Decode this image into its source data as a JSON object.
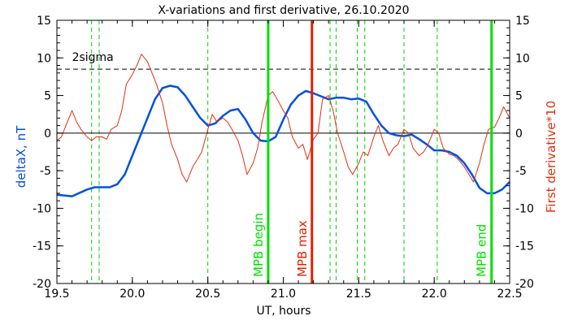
{
  "chart_data": {
    "type": "line",
    "title": "X-variations and first derivative, 26.10.2020",
    "xlabel": "UT, hours",
    "ylabel_left": "deltaX, nT",
    "ylabel_right": "First derivative*10",
    "xlim": [
      19.5,
      22.5
    ],
    "ylim": [
      -20,
      15
    ],
    "xticks": [
      "19.5",
      "20.0",
      "20.5",
      "21.0",
      "21.5",
      "22.0",
      "22.5"
    ],
    "yticks": [
      "-20",
      "-15",
      "-10",
      "-5",
      "0",
      "5",
      "10",
      "15"
    ],
    "sigma_label": "2sigma",
    "sigma_level": 8.5,
    "zero_level": 0,
    "series": [
      {
        "name": "deltaX, nT",
        "color": "#0050e0",
        "x": [
          19.5,
          19.6,
          19.7,
          19.75,
          19.85,
          19.9,
          19.95,
          20.0,
          20.05,
          20.1,
          20.15,
          20.2,
          20.25,
          20.3,
          20.35,
          20.4,
          20.45,
          20.5,
          20.55,
          20.6,
          20.65,
          20.7,
          20.75,
          20.8,
          20.85,
          20.9,
          20.95,
          21.0,
          21.05,
          21.1,
          21.15,
          21.2,
          21.25,
          21.3,
          21.35,
          21.4,
          21.45,
          21.5,
          21.55,
          21.6,
          21.65,
          21.7,
          21.75,
          21.8,
          21.85,
          21.9,
          21.95,
          22.0,
          22.05,
          22.1,
          22.15,
          22.2,
          22.25,
          22.3,
          22.35,
          22.4,
          22.45,
          22.5
        ],
        "values": [
          -8.2,
          -8.4,
          -7.5,
          -7.2,
          -7.2,
          -6.8,
          -5.5,
          -3.0,
          -0.5,
          2.0,
          4.5,
          6.0,
          6.3,
          6.1,
          5.0,
          3.5,
          2.0,
          1.0,
          1.3,
          2.3,
          3.0,
          3.2,
          1.8,
          0.0,
          -1.0,
          -1.1,
          -0.5,
          1.8,
          3.8,
          5.0,
          5.6,
          5.3,
          4.9,
          4.5,
          4.7,
          4.7,
          4.5,
          4.6,
          4.2,
          2.5,
          1.0,
          0.0,
          -0.3,
          -0.4,
          -0.2,
          -0.8,
          -1.5,
          -2.3,
          -2.3,
          -2.5,
          -3.0,
          -4.0,
          -5.5,
          -7.3,
          -8.0,
          -8.0,
          -7.5,
          -6.5
        ]
      },
      {
        "name": "First derivative*10",
        "color": "#e03010",
        "x": [
          19.5,
          19.53,
          19.56,
          19.6,
          19.63,
          19.66,
          19.7,
          19.73,
          19.76,
          19.8,
          19.83,
          19.86,
          19.9,
          19.93,
          19.96,
          20.0,
          20.03,
          20.06,
          20.1,
          20.13,
          20.16,
          20.2,
          20.23,
          20.26,
          20.3,
          20.33,
          20.36,
          20.4,
          20.43,
          20.46,
          20.5,
          20.53,
          20.56,
          20.6,
          20.63,
          20.66,
          20.7,
          20.73,
          20.76,
          20.8,
          20.83,
          20.86,
          20.9,
          20.93,
          20.96,
          21.0,
          21.03,
          21.06,
          21.1,
          21.13,
          21.16,
          21.2,
          21.23,
          21.26,
          21.3,
          21.33,
          21.36,
          21.4,
          21.43,
          21.46,
          21.5,
          21.53,
          21.56,
          21.6,
          21.63,
          21.66,
          21.7,
          21.73,
          21.76,
          21.8,
          21.83,
          21.86,
          21.9,
          21.93,
          21.96,
          22.0,
          22.03,
          22.06,
          22.1,
          22.13,
          22.16,
          22.2,
          22.23,
          22.26,
          22.3,
          22.33,
          22.36,
          22.4,
          22.43,
          22.46,
          22.5
        ],
        "values": [
          -1.0,
          -0.5,
          1.0,
          3.0,
          1.5,
          0.5,
          -0.5,
          -1.0,
          -0.5,
          -0.5,
          -0.8,
          0.5,
          1.0,
          3.0,
          6.5,
          7.8,
          9.0,
          10.5,
          9.5,
          8.0,
          6.5,
          4.0,
          1.0,
          -1.5,
          -3.5,
          -5.5,
          -6.5,
          -4.5,
          -3.5,
          -2.5,
          0.5,
          2.5,
          1.5,
          2.0,
          1.5,
          0.5,
          -1.0,
          -3.0,
          -5.5,
          -4.0,
          -2.0,
          1.5,
          5.0,
          5.5,
          4.5,
          3.0,
          2.0,
          -0.5,
          -2.0,
          -1.5,
          -3.5,
          -0.8,
          0.0,
          4.5,
          5.0,
          3.0,
          0.0,
          -2.5,
          -4.5,
          -5.5,
          -4.0,
          -2.5,
          -3.0,
          -0.5,
          1.0,
          -1.0,
          -3.0,
          -2.0,
          -1.5,
          0.5,
          0.0,
          -2.0,
          -3.0,
          -2.5,
          -1.5,
          0.5,
          0.0,
          -2.0,
          -2.8,
          -3.0,
          -3.5,
          -4.5,
          -5.5,
          -6.5,
          -4.0,
          -1.5,
          0.5,
          0.8,
          2.0,
          3.5,
          2.0
        ]
      }
    ],
    "markers": [
      {
        "x": 20.9,
        "label": "MPB begin",
        "color": "#00e000"
      },
      {
        "x": 21.19,
        "label": "MPB max",
        "color": "#e02000"
      },
      {
        "x": 22.38,
        "label": "MPB end",
        "color": "#00e000"
      }
    ],
    "dashed_lines_x": [
      19.73,
      19.78,
      20.5,
      21.31,
      21.35,
      21.49,
      21.54,
      21.8,
      22.02
    ],
    "dashed_color": "#00d000"
  }
}
